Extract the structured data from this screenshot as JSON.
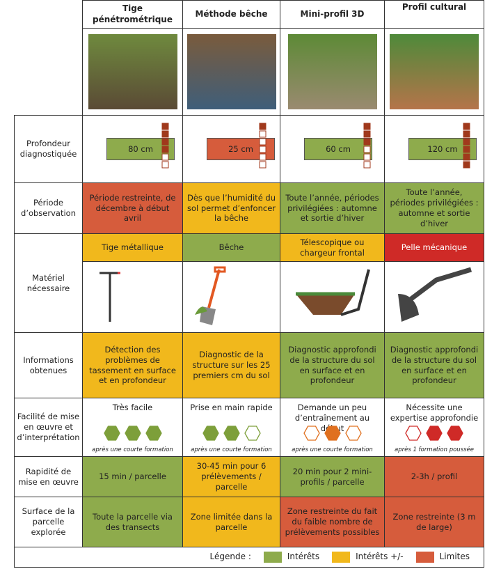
{
  "header": {
    "columns": [
      "Tige pénétrométrique",
      "Méthode bêche",
      "Mini-profil 3D",
      "Profil cultural"
    ]
  },
  "rows": {
    "depth": {
      "label": "Profondeur diagnostiquée",
      "cells": [
        "80 cm",
        "25 cm",
        "60 cm",
        "120 cm"
      ]
    },
    "period": {
      "label": "Période d’observation",
      "cells": [
        "Période restreinte, de décembre à début avril",
        "Dès que l’humidité du sol permet d’enfoncer la bêche",
        "Toute l’année, périodes privilégiées : automne et sortie d’hiver",
        "Toute l’année, périodes privilégiées : automne et sortie d’hiver"
      ]
    },
    "equipment": {
      "label": "Matériel nécessaire",
      "cells": [
        "Tige métallique",
        "Bêche",
        "Télescopique ou chargeur frontal",
        "Pelle mécanique"
      ]
    },
    "info": {
      "label": "Informations obtenues",
      "cells": [
        "Détection des problèmes de tassement en surface et en profondeur",
        "Diagnostic de la structure sur les 25 premiers cm du sol",
        "Diagnostic approfondi de la structure du sol en surface et en profondeur",
        "Diagnostic approfondi de la structure du sol en surface et en profondeur"
      ]
    },
    "ease": {
      "label": "Facilité de mise en œuvre et d’interprétation",
      "cells": [
        {
          "text": "Très facile",
          "note": "après une courte formation"
        },
        {
          "text": "Prise en main rapide",
          "note": "après une courte formation"
        },
        {
          "text": "Demande un peu d’entraînement au début",
          "note": "après une courte formation"
        },
        {
          "text": "Nécessite une expertise approfondie",
          "note": "après 1 formation poussée"
        }
      ]
    },
    "speed": {
      "label": "Rapidité de mise en œuvre",
      "cells": [
        "15 min / parcelle",
        "30-45 min pour 6 prélèvements / parcelle",
        "20 min pour 2 mini-profils / parcelle",
        "2-3h / profil"
      ]
    },
    "surface": {
      "label": "Surface de la parcelle explorée",
      "cells": [
        "Toute la parcelle via des transects",
        "Zone limitée dans la parcelle",
        "Zone restreinte du fait du faible nombre de prélèvements possibles",
        "Zone restreinte (3 m de large)"
      ]
    }
  },
  "legend": {
    "title": "Légende :",
    "items": [
      "Intérêts",
      "Intérêts +/-",
      "Limites"
    ]
  }
}
